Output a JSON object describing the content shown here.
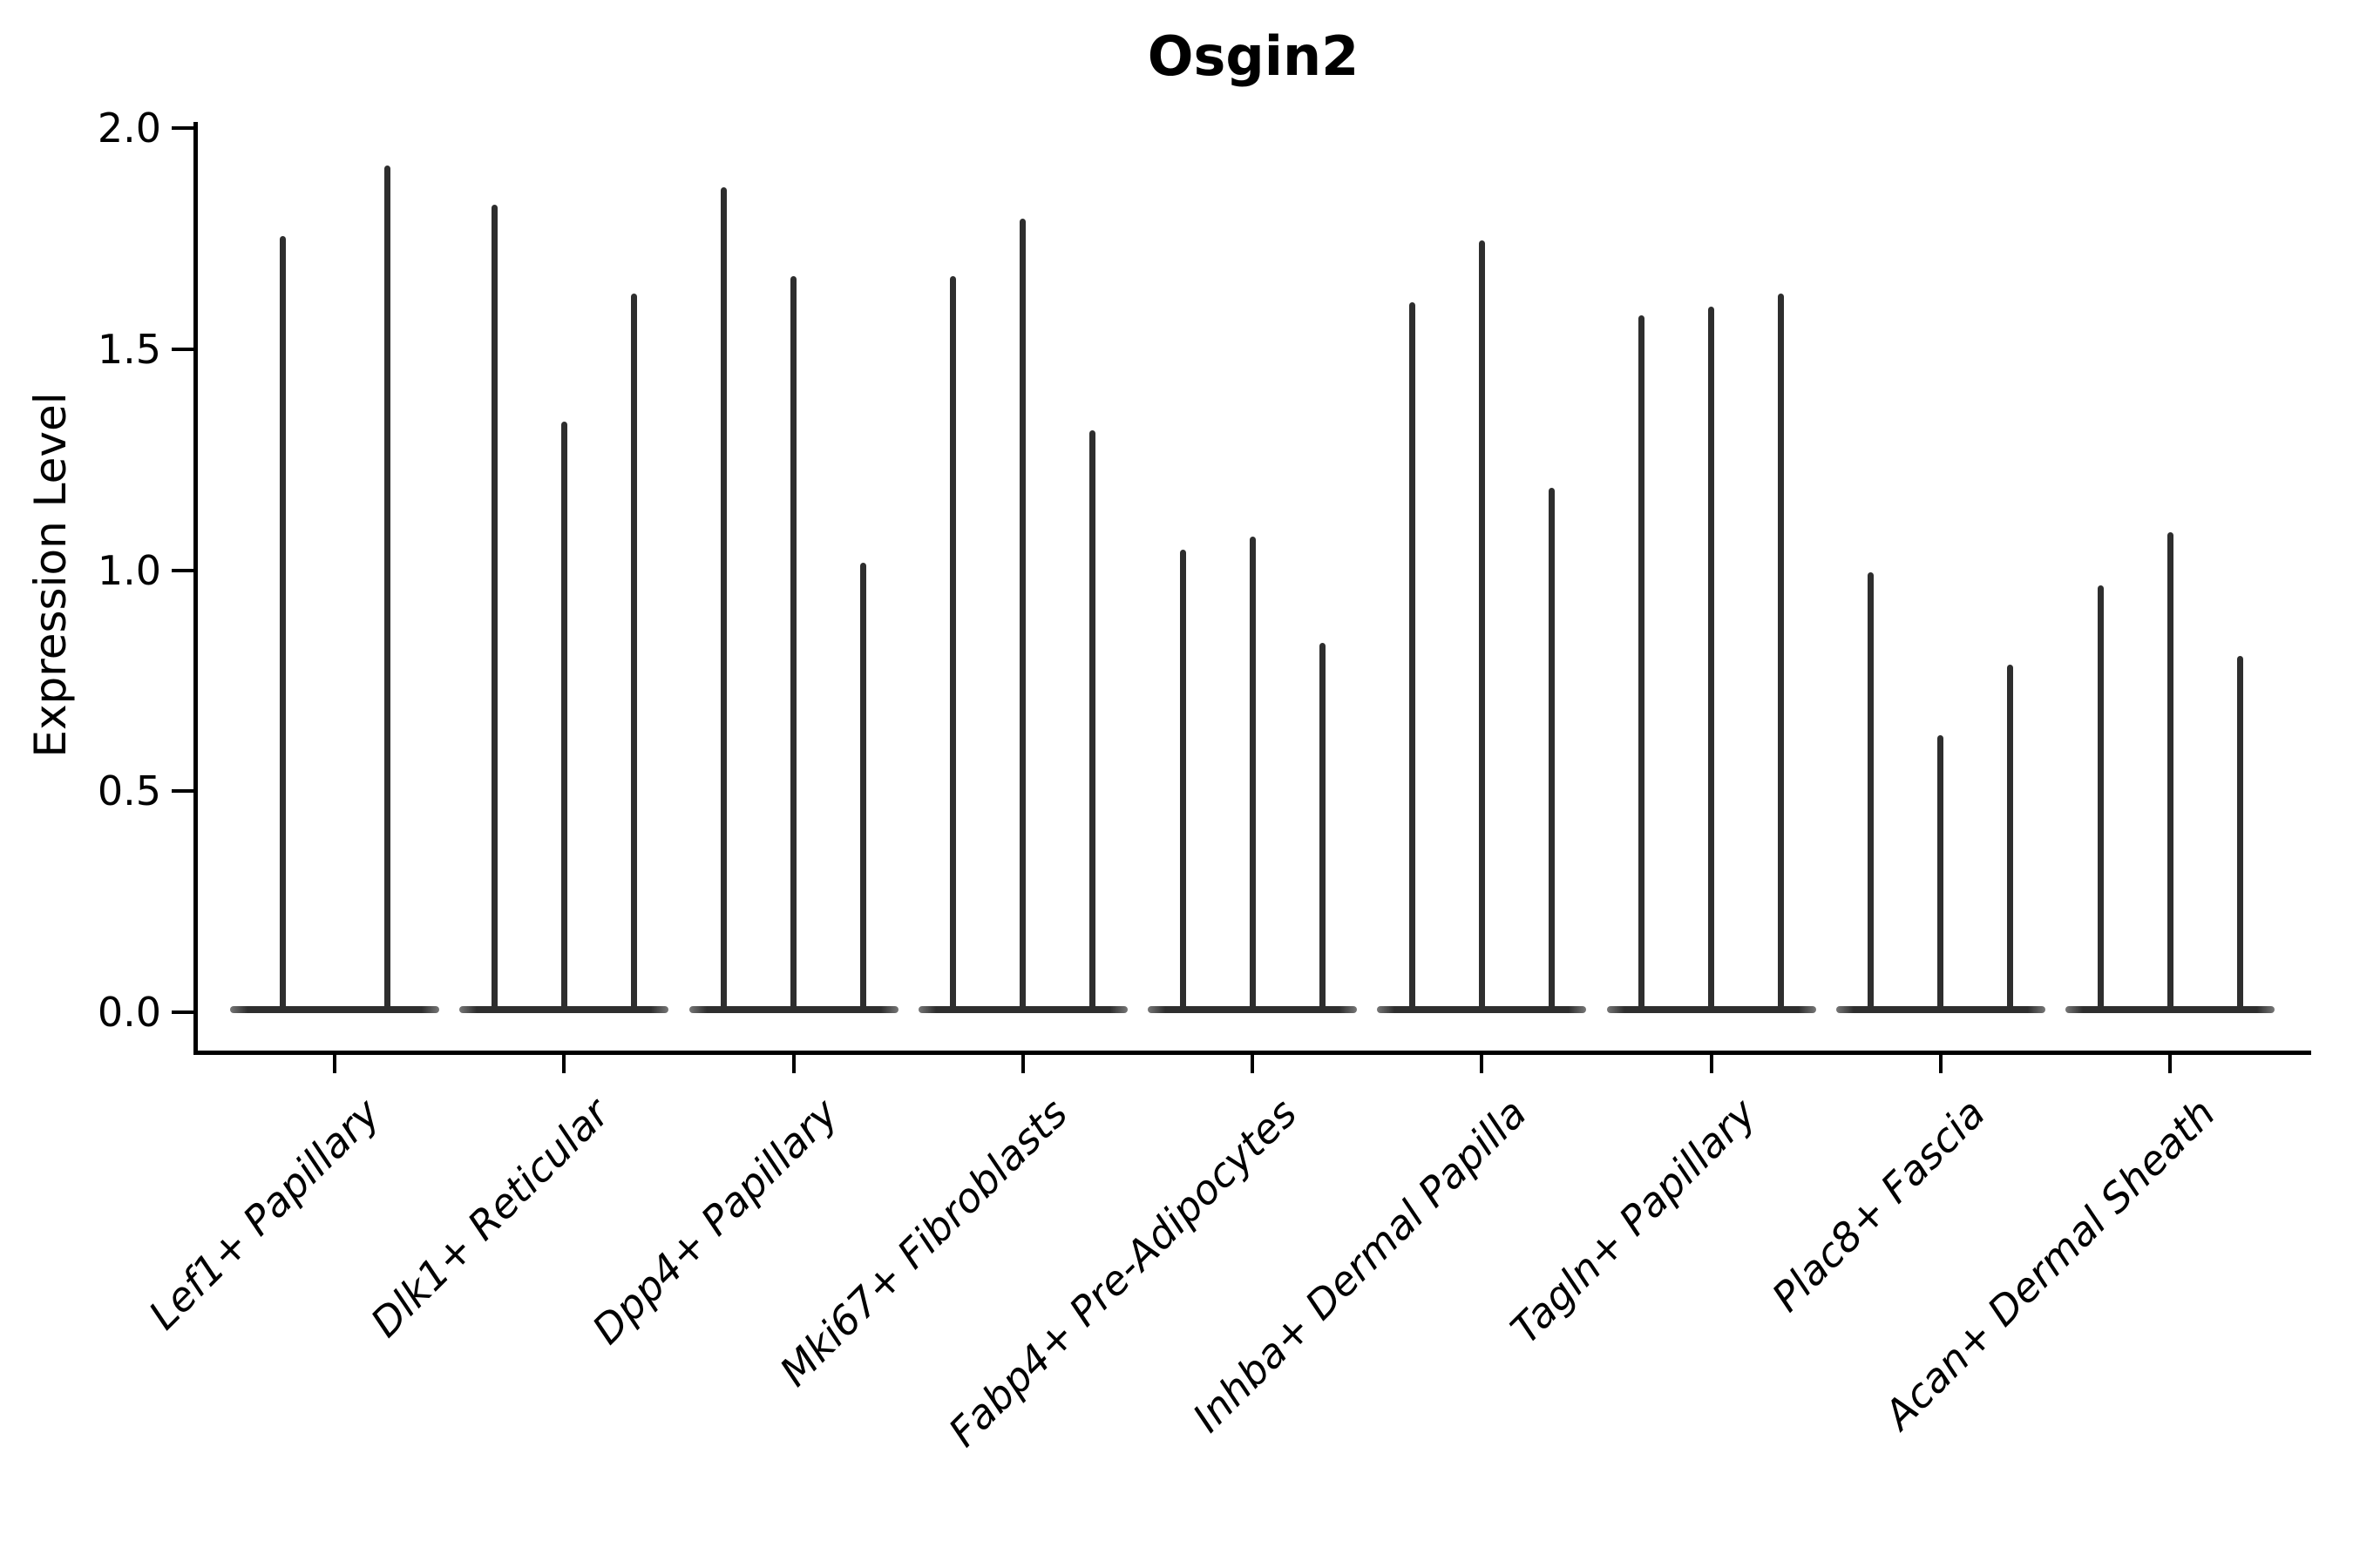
{
  "chart_data": {
    "type": "violin",
    "title": "Osgin2",
    "xlabel": "",
    "ylabel": "Expression Level",
    "ylim": [
      -0.09,
      2.07
    ],
    "yticks": [
      0.0,
      0.5,
      1.0,
      1.5,
      2.0
    ],
    "ytick_labels": [
      "0.0",
      "0.5",
      "1.0",
      "1.5",
      "2.0"
    ],
    "grid": false,
    "legend_position": "none",
    "violin_color": "#2e2e2e",
    "axis_color": "#000000",
    "categories": [
      "Lef1+ Papillary",
      "Dlk1+ Reticular",
      "Dpp4+ Papillary",
      "Mki67+ Fibroblasts",
      "Fabp4+ Pre-Adipocytes",
      "Inhba+ Dermal Papilla",
      "Tagln+ Papillary",
      "Plac8+ Fascia",
      "Acan+ Dermal Sheath"
    ],
    "series": [
      {
        "category": "Lef1+ Papillary",
        "violin_max_values": [
          1.75,
          1.91
        ]
      },
      {
        "category": "Dlk1+ Reticular",
        "violin_max_values": [
          1.82,
          1.33,
          1.62
        ]
      },
      {
        "category": "Dpp4+ Papillary",
        "violin_max_values": [
          1.86,
          1.66,
          1.01
        ]
      },
      {
        "category": "Mki67+ Fibroblasts",
        "violin_max_values": [
          1.66,
          1.79,
          1.31
        ]
      },
      {
        "category": "Fabp4+ Pre-Adipocytes",
        "violin_max_values": [
          1.04,
          1.07,
          0.83
        ]
      },
      {
        "category": "Inhba+ Dermal Papilla",
        "violin_max_values": [
          1.6,
          1.74,
          1.18
        ]
      },
      {
        "category": "Tagln+ Papillary",
        "violin_max_values": [
          1.57,
          1.59,
          1.62
        ]
      },
      {
        "category": "Plac8+ Fascia",
        "violin_max_values": [
          0.99,
          0.62,
          0.78
        ]
      },
      {
        "category": "Acan+ Dermal Sheath",
        "violin_max_values": [
          0.96,
          1.08,
          0.8
        ]
      }
    ]
  }
}
